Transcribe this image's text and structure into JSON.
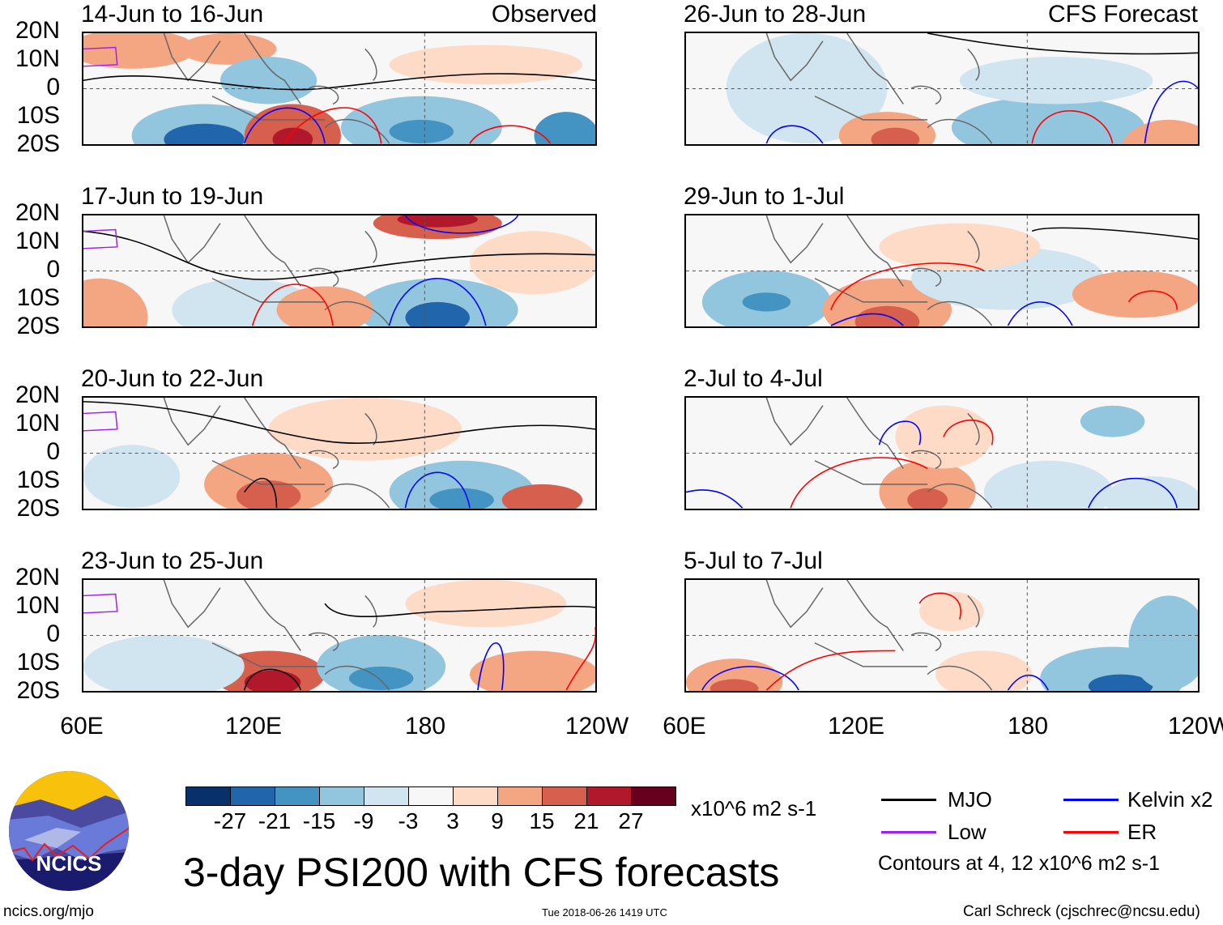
{
  "chart_data": {
    "type": "heatmap",
    "title": "3-day PSI200 with CFS forecasts",
    "units": "x10^6 m2 s-1",
    "column_labels": [
      "Observed",
      "CFS Forecast"
    ],
    "panels": [
      {
        "title": "14-Jun to 16-Jun",
        "column": "Observed"
      },
      {
        "title": "17-Jun to 19-Jun",
        "column": "Observed"
      },
      {
        "title": "20-Jun to 22-Jun",
        "column": "Observed"
      },
      {
        "title": "23-Jun to 25-Jun",
        "column": "Observed"
      },
      {
        "title": "26-Jun to 28-Jun",
        "column": "CFS Forecast"
      },
      {
        "title": "29-Jun to 1-Jul",
        "column": "CFS Forecast"
      },
      {
        "title": "2-Jul to 4-Jul",
        "column": "CFS Forecast"
      },
      {
        "title": "5-Jul to 7-Jul",
        "column": "CFS Forecast"
      }
    ],
    "y_ticks": [
      "20N",
      "10N",
      "0",
      "10S",
      "20S"
    ],
    "x_ticks": [
      "60E",
      "120E",
      "180",
      "120W"
    ],
    "colorbar": {
      "ticks": [
        "-27",
        "-21",
        "-15",
        "-9",
        "-3",
        "3",
        "9",
        "15",
        "21",
        "27"
      ],
      "colors": [
        "#08306b",
        "#2166ac",
        "#4393c3",
        "#92c5de",
        "#d1e5f0",
        "#f7f7f7",
        "#fddbc7",
        "#f4a582",
        "#d6604d",
        "#b2182b",
        "#67001f"
      ]
    },
    "legend": [
      {
        "label": "MJO",
        "color": "#000000"
      },
      {
        "label": "Kelvin x2",
        "color": "#0000ff"
      },
      {
        "label": "Low",
        "color": "#a020f0"
      },
      {
        "label": "ER",
        "color": "#ff0000"
      }
    ],
    "contour_note": "Contours at 4, 12 x10^6 m2 s-1"
  },
  "footer": {
    "logo_text": "NCICS",
    "url": "ncics.org/mjo",
    "timestamp": "Tue 2018-06-26 1419 UTC",
    "author": "Carl Schreck (cjschrec@ncsu.edu)"
  }
}
